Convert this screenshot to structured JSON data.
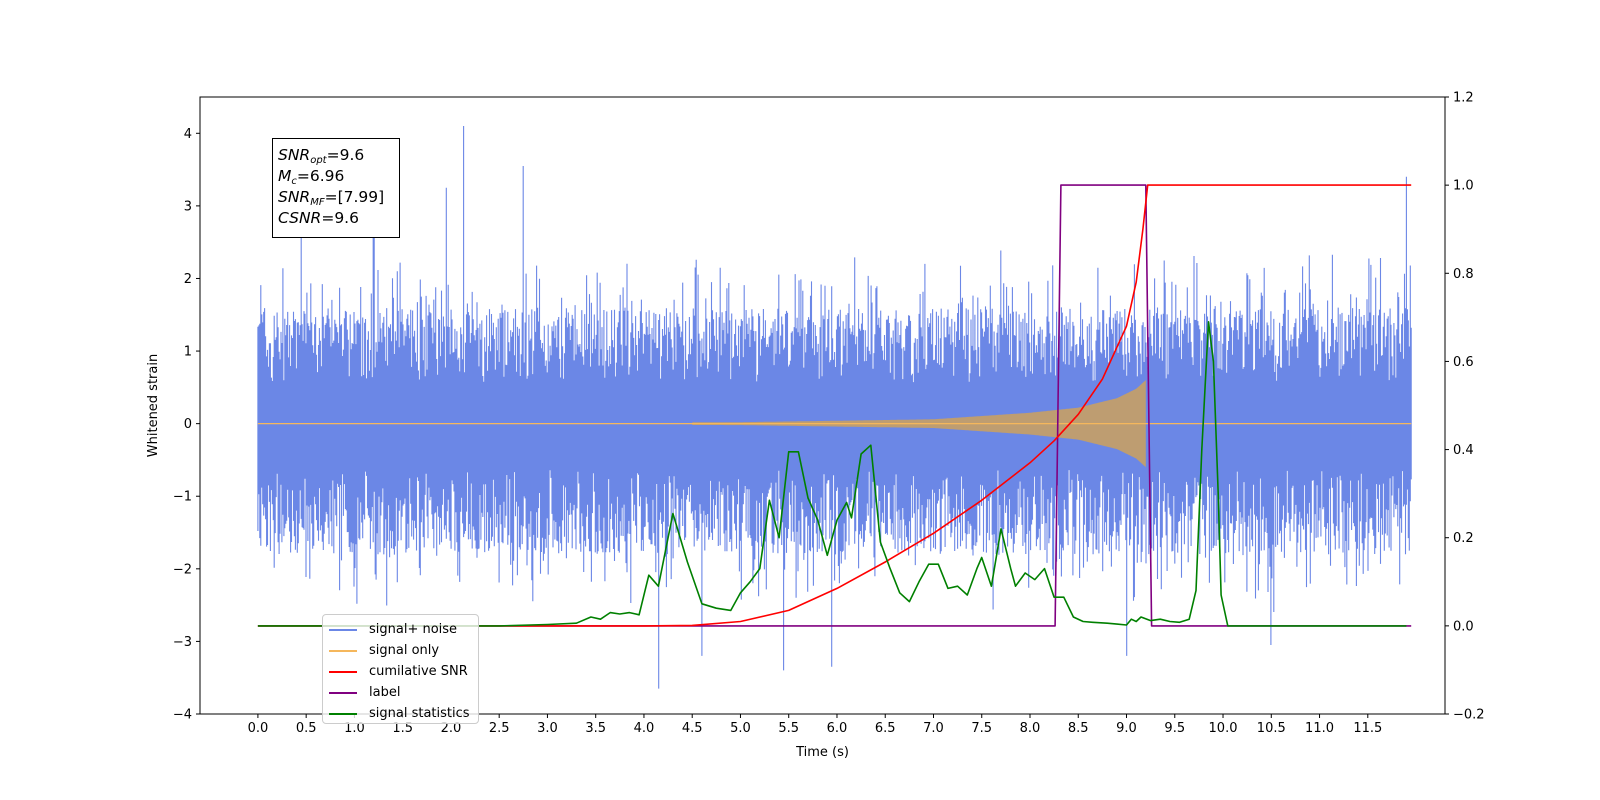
{
  "chart_data": {
    "type": "line",
    "xlabel": "Time (s)",
    "ylabel": "Whitened strain",
    "xlim": [
      -0.6,
      12.3
    ],
    "ylim": [
      -4,
      4.5
    ],
    "y2lim": [
      -0.2,
      1.2
    ],
    "x_ticks": [
      "0.0",
      "0.5",
      "1.0",
      "1.5",
      "2.0",
      "2.5",
      "3.0",
      "3.5",
      "4.0",
      "4.5",
      "5.0",
      "5.5",
      "6.0",
      "6.5",
      "7.0",
      "7.5",
      "8.0",
      "8.5",
      "9.0",
      "9.5",
      "10.0",
      "10.5",
      "11.0",
      "11.5"
    ],
    "y_ticks": [
      "4",
      "3",
      "2",
      "1",
      "0",
      "−1",
      "−2",
      "−3",
      "−4"
    ],
    "y2_ticks": [
      "1.2",
      "1.0",
      "0.8",
      "0.6",
      "0.4",
      "0.2",
      "0.0",
      "−0.2"
    ],
    "noise_envelope": {
      "upper_typical": 1.6,
      "lower_typical": -1.8,
      "spikes": [
        {
          "x": 2.13,
          "y": 4.1
        },
        {
          "x": 1.95,
          "y": 3.25
        },
        {
          "x": 2.75,
          "y": 3.55
        },
        {
          "x": 0.45,
          "y": 3.0
        },
        {
          "x": 1.2,
          "y": 3.3
        },
        {
          "x": 11.9,
          "y": 3.4
        },
        {
          "x": 4.15,
          "y": -3.65
        },
        {
          "x": 5.45,
          "y": -3.4
        },
        {
          "x": 5.95,
          "y": -3.35
        },
        {
          "x": 9.0,
          "y": -3.2
        },
        {
          "x": 4.6,
          "y": -3.2
        },
        {
          "x": 10.5,
          "y": -3.05
        }
      ]
    },
    "signal_only": {
      "description_points": [
        [
          0.0,
          0.0
        ],
        [
          5.0,
          0.02
        ],
        [
          7.0,
          0.06
        ],
        [
          8.0,
          0.15
        ],
        [
          8.5,
          0.22
        ],
        [
          8.9,
          0.35
        ],
        [
          9.1,
          0.48
        ],
        [
          9.2,
          0.6
        ],
        [
          9.25,
          0.0
        ],
        [
          11.95,
          0.0
        ]
      ]
    },
    "series": [
      {
        "name": "signal+ noise",
        "color": "#6b87e6",
        "axis": "left"
      },
      {
        "name": "signal only",
        "color": "#f5b75c",
        "axis": "left"
      },
      {
        "name": "cumilative SNR",
        "color": "#ff0000",
        "axis": "right",
        "points": [
          [
            0.0,
            0.0
          ],
          [
            4.0,
            0.0
          ],
          [
            4.5,
            0.001
          ],
          [
            5.0,
            0.01
          ],
          [
            5.5,
            0.035
          ],
          [
            6.0,
            0.085
          ],
          [
            6.5,
            0.145
          ],
          [
            7.0,
            0.21
          ],
          [
            7.5,
            0.285
          ],
          [
            8.0,
            0.37
          ],
          [
            8.25,
            0.42
          ],
          [
            8.5,
            0.48
          ],
          [
            8.75,
            0.56
          ],
          [
            9.0,
            0.68
          ],
          [
            9.1,
            0.78
          ],
          [
            9.17,
            0.9
          ],
          [
            9.22,
            1.0
          ],
          [
            11.95,
            1.0
          ]
        ]
      },
      {
        "name": "label",
        "color": "#800080",
        "axis": "right",
        "points": [
          [
            0.0,
            0.0
          ],
          [
            8.26,
            0.0
          ],
          [
            8.32,
            1.0
          ],
          [
            9.2,
            1.0
          ],
          [
            9.26,
            0.0
          ],
          [
            11.95,
            0.0
          ]
        ]
      },
      {
        "name": "signal statistics",
        "color": "#008000",
        "axis": "right",
        "points": [
          [
            0.0,
            0.0
          ],
          [
            2.5,
            0.0
          ],
          [
            3.0,
            0.003
          ],
          [
            3.3,
            0.006
          ],
          [
            3.45,
            0.02
          ],
          [
            3.55,
            0.015
          ],
          [
            3.65,
            0.03
          ],
          [
            3.75,
            0.027
          ],
          [
            3.85,
            0.03
          ],
          [
            3.95,
            0.025
          ],
          [
            4.05,
            0.115
          ],
          [
            4.15,
            0.09
          ],
          [
            4.3,
            0.255
          ],
          [
            4.45,
            0.145
          ],
          [
            4.6,
            0.05
          ],
          [
            4.75,
            0.04
          ],
          [
            4.9,
            0.035
          ],
          [
            5.0,
            0.075
          ],
          [
            5.1,
            0.1
          ],
          [
            5.2,
            0.13
          ],
          [
            5.3,
            0.285
          ],
          [
            5.4,
            0.2
          ],
          [
            5.5,
            0.395
          ],
          [
            5.6,
            0.395
          ],
          [
            5.7,
            0.29
          ],
          [
            5.8,
            0.24
          ],
          [
            5.9,
            0.16
          ],
          [
            6.0,
            0.24
          ],
          [
            6.1,
            0.28
          ],
          [
            6.15,
            0.245
          ],
          [
            6.25,
            0.39
          ],
          [
            6.35,
            0.41
          ],
          [
            6.45,
            0.19
          ],
          [
            6.55,
            0.13
          ],
          [
            6.65,
            0.075
          ],
          [
            6.75,
            0.055
          ],
          [
            6.85,
            0.1
          ],
          [
            6.95,
            0.14
          ],
          [
            7.05,
            0.14
          ],
          [
            7.15,
            0.085
          ],
          [
            7.25,
            0.09
          ],
          [
            7.35,
            0.07
          ],
          [
            7.45,
            0.13
          ],
          [
            7.5,
            0.155
          ],
          [
            7.6,
            0.09
          ],
          [
            7.7,
            0.22
          ],
          [
            7.8,
            0.13
          ],
          [
            7.85,
            0.09
          ],
          [
            7.95,
            0.12
          ],
          [
            8.05,
            0.105
          ],
          [
            8.15,
            0.13
          ],
          [
            8.25,
            0.065
          ],
          [
            8.35,
            0.065
          ],
          [
            8.45,
            0.02
          ],
          [
            8.55,
            0.01
          ],
          [
            8.65,
            0.008
          ],
          [
            8.8,
            0.006
          ],
          [
            8.9,
            0.004
          ],
          [
            9.0,
            0.002
          ],
          [
            9.05,
            0.015
          ],
          [
            9.1,
            0.01
          ],
          [
            9.15,
            0.02
          ],
          [
            9.25,
            0.012
          ],
          [
            9.35,
            0.015
          ],
          [
            9.45,
            0.01
          ],
          [
            9.55,
            0.008
          ],
          [
            9.65,
            0.015
          ],
          [
            9.72,
            0.08
          ],
          [
            9.78,
            0.4
          ],
          [
            9.85,
            0.69
          ],
          [
            9.9,
            0.6
          ],
          [
            9.95,
            0.3
          ],
          [
            9.98,
            0.07
          ],
          [
            10.05,
            0.0
          ],
          [
            11.9,
            0.0
          ]
        ]
      }
    ],
    "legend": {
      "placement": "lower-left",
      "entries": [
        {
          "label": "signal+ noise",
          "color": "#6b87e6"
        },
        {
          "label": "signal only",
          "color": "#f5b75c"
        },
        {
          "label": "cumilative SNR",
          "color": "#ff0000"
        },
        {
          "label": "label",
          "color": "#800080"
        },
        {
          "label": "signal statistics",
          "color": "#008000"
        }
      ]
    },
    "annotation": {
      "snr_opt": "=9.6",
      "mc": "=6.96",
      "snr_mf": "=[7.99]",
      "csnr": "=9.6"
    }
  }
}
